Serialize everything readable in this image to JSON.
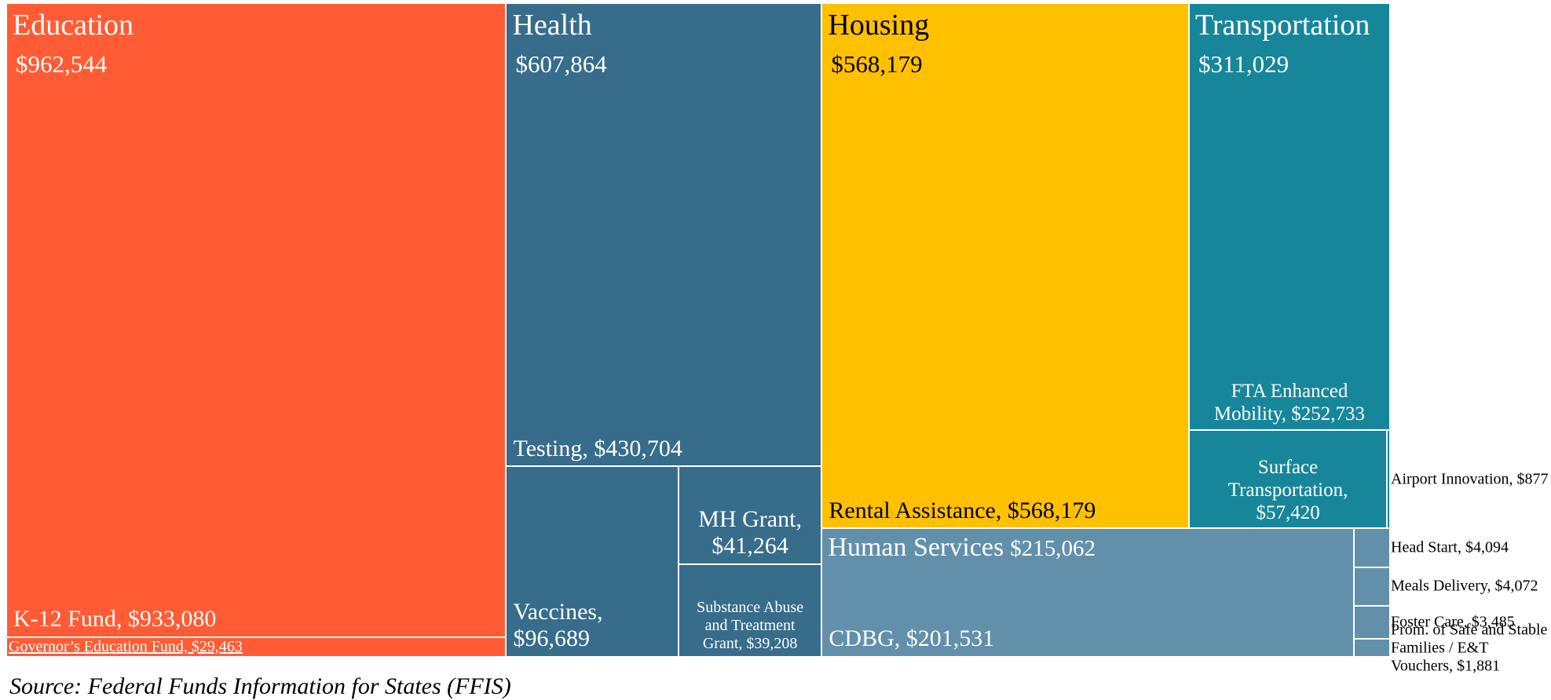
{
  "chart_data": {
    "type": "treemap",
    "source": "Source: Federal Funds Information for States (FFIS)",
    "groups": [
      {
        "name": "Education",
        "value": 962544,
        "value_label": "$962,544",
        "color": "#ff5c35",
        "text_color": "#ffffff",
        "children": [
          {
            "label": "K-12 Fund, $933,080",
            "value": 933080
          },
          {
            "label": "Governor’s Education Fund, $29,463",
            "value": 29463
          }
        ]
      },
      {
        "name": "Health",
        "value": 607864,
        "value_label": "$607,864",
        "color": "#376c8b",
        "text_color": "#ffffff",
        "children": [
          {
            "label": "Testing, $430,704",
            "value": 430704
          },
          {
            "label": "Vaccines, $96,689",
            "value": 96689
          },
          {
            "label": "MH Grant, $41,264",
            "value": 41264
          },
          {
            "label": "Substance Abuse and Treatment Grant, $39,208",
            "value": 39208
          }
        ]
      },
      {
        "name": "Housing",
        "value": 568179,
        "value_label": "$568,179",
        "color": "#ffc000",
        "text_color": "#000000",
        "children": [
          {
            "label": "Rental Assistance, $568,179",
            "value": 568179
          }
        ]
      },
      {
        "name": "Transportation",
        "value": 311029,
        "value_label": "$311,029",
        "color": "#17869a",
        "text_color": "#ffffff",
        "children": [
          {
            "label": "FTA Enhanced Mobility, $252,733",
            "value": 252733
          },
          {
            "label": "Surface Transportation, $57,420",
            "value": 57420
          },
          {
            "label": "Airport Innovation, $877",
            "value": 877
          }
        ]
      },
      {
        "name": "Human Services",
        "value": 215062,
        "value_label": "$215,062",
        "color": "#6290aa",
        "text_color": "#ffffff",
        "children": [
          {
            "label": "CDBG, $201,531",
            "value": 201531
          },
          {
            "label": "Head Start, $4,094",
            "value": 4094
          },
          {
            "label": "Meals Delivery, $4,072",
            "value": 4072
          },
          {
            "label": "Foster Care, $3,485",
            "value": 3485
          },
          {
            "label": "Prom. of Safe and Stable Families / E&T Vouchers, $1,881",
            "value": 1881
          }
        ]
      }
    ]
  }
}
